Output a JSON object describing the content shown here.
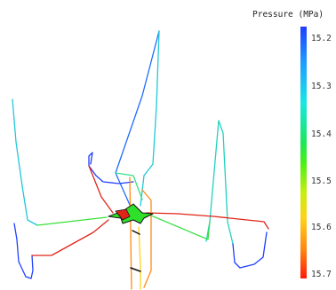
{
  "legend": {
    "title": "Pressure (MPa)",
    "ticks": [
      "15.2",
      "15.3",
      "15.4",
      "15.5",
      "15.6",
      "15.7"
    ]
  },
  "colors": {
    "high_pressure": "#ff1a0a",
    "mid_pressure": "#1ee65a",
    "low_pressure": "#1f3fff",
    "background": "#ffffff"
  }
}
